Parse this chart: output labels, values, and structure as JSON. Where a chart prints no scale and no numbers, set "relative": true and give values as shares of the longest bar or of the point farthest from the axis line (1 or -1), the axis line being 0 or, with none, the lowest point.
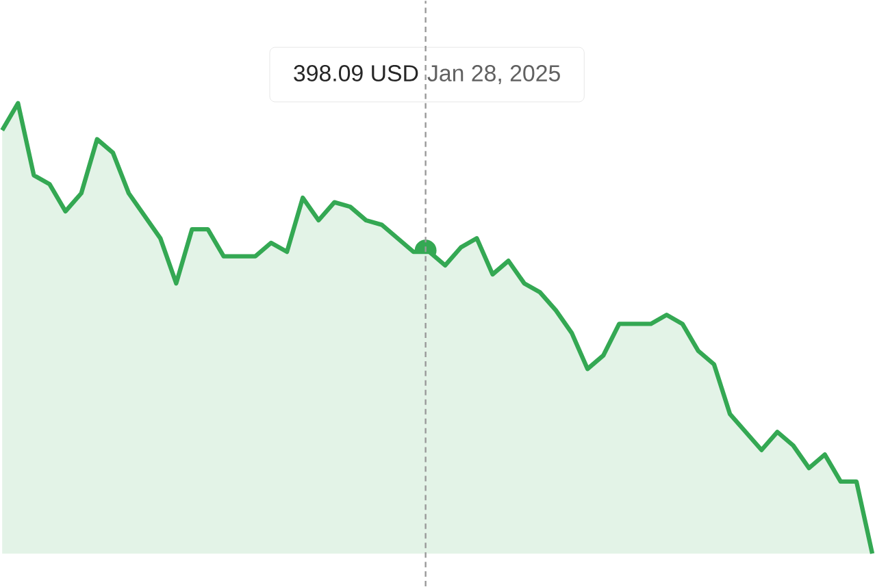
{
  "chart_data": {
    "type": "area",
    "relative": true,
    "color": "#34a853",
    "categories": [
      null,
      null,
      null,
      null,
      null,
      null,
      null,
      null,
      null,
      null,
      null,
      null,
      null,
      null,
      null,
      null,
      null,
      null,
      null,
      null,
      null,
      null,
      null,
      null,
      null,
      null,
      null,
      null,
      null,
      null,
      null,
      null,
      null,
      null,
      null,
      null,
      null,
      null,
      null,
      null,
      null,
      null,
      null,
      null,
      null,
      null,
      null,
      null,
      null,
      null,
      null,
      null,
      null,
      null,
      null,
      null
    ],
    "values": [
      0.94,
      1.0,
      0.84,
      0.82,
      0.76,
      0.8,
      0.92,
      0.89,
      0.8,
      0.75,
      0.7,
      0.6,
      0.72,
      0.72,
      0.66,
      0.66,
      0.66,
      0.69,
      0.67,
      0.79,
      0.74,
      0.78,
      0.77,
      0.74,
      0.73,
      0.7,
      0.67,
      0.67,
      0.64,
      0.68,
      0.7,
      0.62,
      0.65,
      0.6,
      0.58,
      0.54,
      0.49,
      0.41,
      0.44,
      0.51,
      0.51,
      0.51,
      0.53,
      0.51,
      0.45,
      0.42,
      0.31,
      0.27,
      0.23,
      0.27,
      0.24,
      0.19,
      0.22,
      0.16,
      0.16,
      0.0
    ],
    "annotations": [
      "398.09 USD",
      "Jan 28, 2025"
    ]
  }
}
